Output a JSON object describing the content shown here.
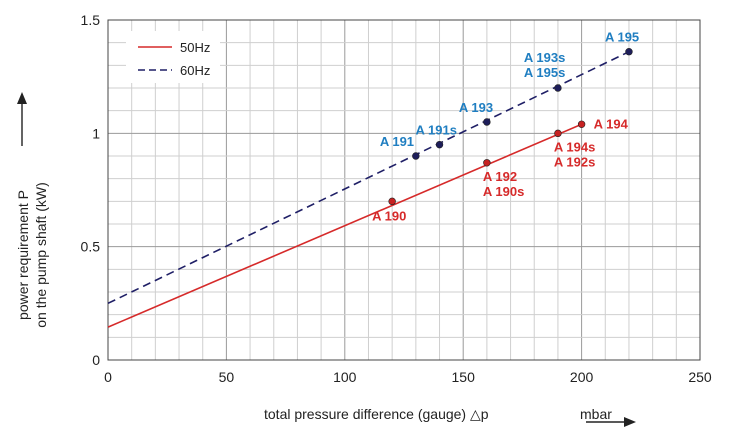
{
  "chart_data": {
    "type": "line",
    "xlabel": "total pressure difference (gauge) △p",
    "xunit": "mbar",
    "ylabel_line1": "power requirement P",
    "ylabel_line2": "on the pump shaft (kW)",
    "xlim": [
      0,
      250
    ],
    "ylim": [
      0,
      1.5
    ],
    "x_ticks": [
      "0",
      "50",
      "100",
      "150",
      "200",
      "250"
    ],
    "y_ticks": [
      "0",
      "0.5",
      "1",
      "1.5"
    ],
    "grid": true,
    "legend_position": "top-left",
    "colors": {
      "50Hz": "#d62a2a",
      "60Hz": "#1f1f66",
      "label_50Hz": "#d62a2a",
      "label_60Hz": "#1f7ec1"
    },
    "series": [
      {
        "name": "50Hz",
        "line_style": "solid",
        "line": [
          [
            0,
            0.145
          ],
          [
            200,
            1.04
          ]
        ],
        "points": [
          {
            "x": 120,
            "y": 0.7,
            "labels": [
              "A 190"
            ]
          },
          {
            "x": 160,
            "y": 0.87,
            "labels": [
              "A 192",
              "A 190s"
            ]
          },
          {
            "x": 190,
            "y": 1.0,
            "labels": [
              "A 194s",
              "A 192s"
            ]
          },
          {
            "x": 200,
            "y": 1.04,
            "labels": [
              "A 194"
            ]
          }
        ]
      },
      {
        "name": "60Hz",
        "line_style": "dashed",
        "line": [
          [
            0,
            0.25
          ],
          [
            220,
            1.36
          ]
        ],
        "points": [
          {
            "x": 130,
            "y": 0.9,
            "labels": [
              "A 191"
            ]
          },
          {
            "x": 140,
            "y": 0.95,
            "labels": [
              "A 191s"
            ]
          },
          {
            "x": 160,
            "y": 1.05,
            "labels": [
              "A 193"
            ]
          },
          {
            "x": 190,
            "y": 1.2,
            "labels": [
              "A 193s",
              "A 195s"
            ]
          },
          {
            "x": 220,
            "y": 1.36,
            "labels": [
              "A 195"
            ]
          }
        ]
      }
    ]
  }
}
